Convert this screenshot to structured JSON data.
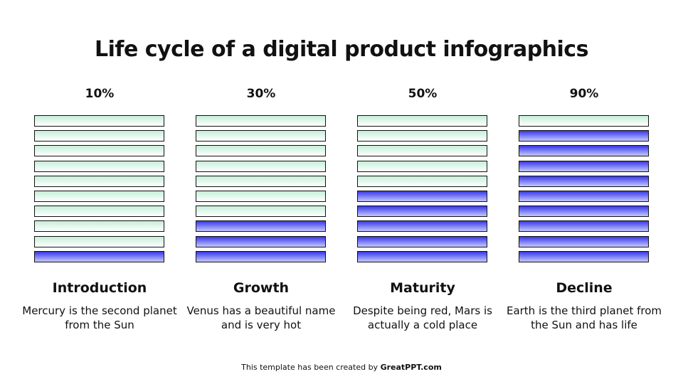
{
  "title": "Life cycle of a digital product infographics",
  "colors": {
    "filled": "#3838e8",
    "empty": "#c6efda",
    "border": "#111111"
  },
  "bar_count": 10,
  "stages": [
    {
      "percent_label": "10%",
      "fill_fraction": 0.1,
      "name": "Introduction",
      "description": "Mercury is the second planet from the Sun"
    },
    {
      "percent_label": "30%",
      "fill_fraction": 0.3,
      "name": "Growth",
      "description": "Venus has a beautiful name and is very hot"
    },
    {
      "percent_label": "50%",
      "fill_fraction": 0.5,
      "name": "Maturity",
      "description": "Despite being red, Mars is actually a cold place"
    },
    {
      "percent_label": "90%",
      "fill_fraction": 0.9,
      "name": "Decline",
      "description": "Earth is the third planet from the Sun and has life"
    }
  ],
  "footer": {
    "prefix": "This template has been created by ",
    "brand": "GreatPPT.com"
  }
}
